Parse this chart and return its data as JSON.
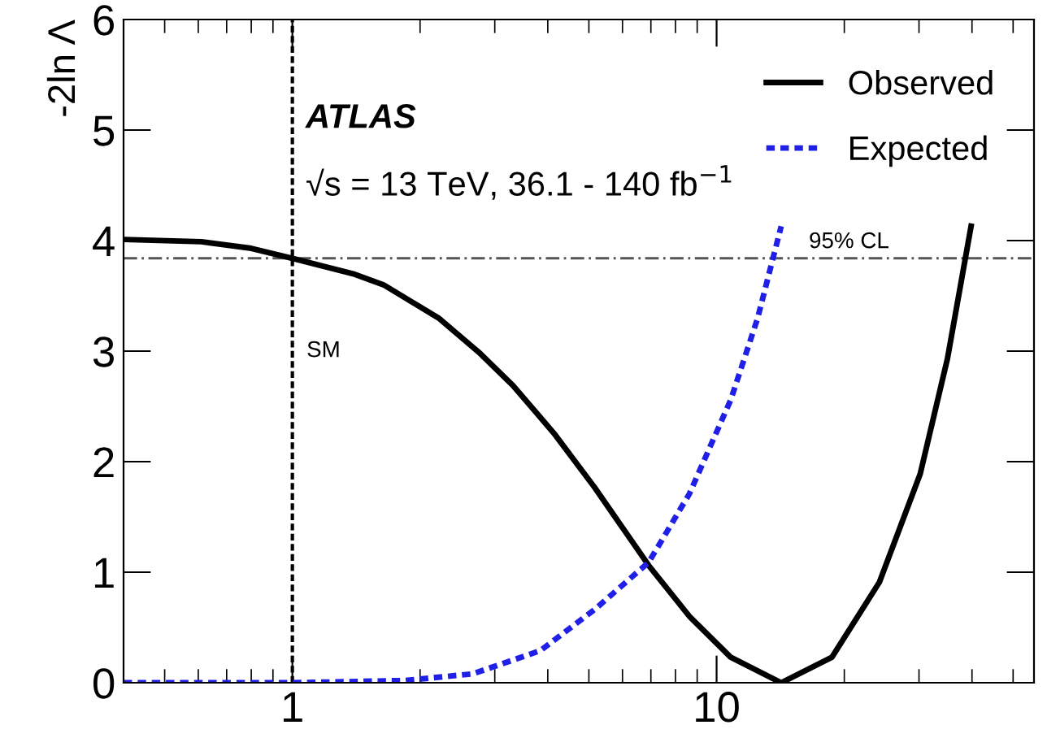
{
  "chart_data": {
    "type": "line",
    "ylabel": "-2ln Λ",
    "log": "x",
    "xlim": [
      0.4,
      56
    ],
    "xticks": [
      1,
      10
    ],
    "ylim": [
      0,
      6
    ],
    "yticks": [
      0,
      1,
      2,
      3,
      4,
      5,
      6
    ],
    "grid": false,
    "legend": "top right",
    "marker": "none",
    "annotations": [
      "ATLAS",
      "√s = 13 TeV, 36.1 - 140 fb$^{−1}$"
    ],
    "ref_lines": [
      {
        "axis": "y",
        "value": 3.84,
        "label": "95% CL",
        "color": "#555555",
        "line_style": "dashdot"
      },
      {
        "axis": "x",
        "value": 1,
        "label": "SM",
        "color": "#000000",
        "line_style": "dotted"
      }
    ],
    "series": [
      {
        "name": "Observed",
        "color": "#000000",
        "line_style": "solid",
        "x": [
          0.4,
          0.61,
          0.8,
          1,
          1.39,
          1.64,
          2.21,
          2.75,
          3.31,
          4.13,
          5.15,
          6.92,
          8.63,
          10.8,
          14.2,
          18.7,
          24.2,
          30.2,
          35.0,
          39.8
        ],
        "values": [
          4.01,
          3.99,
          3.93,
          3.84,
          3.7,
          3.6,
          3.3,
          2.99,
          2.69,
          2.26,
          1.77,
          1.06,
          0.6,
          0.23,
          0,
          0.23,
          0.91,
          1.89,
          2.93,
          4.13
        ]
      },
      {
        "name": "Expected",
        "color": "#1f1fe6",
        "line_style": "dotted",
        "x": [
          0.4,
          1,
          1.84,
          2.66,
          3.84,
          5.15,
          6.92,
          8.63,
          10.8,
          12.5,
          14.2
        ],
        "values": [
          0,
          0,
          0.02,
          0.08,
          0.29,
          0.66,
          1.09,
          1.71,
          2.56,
          3.3,
          4.13
        ]
      }
    ]
  }
}
